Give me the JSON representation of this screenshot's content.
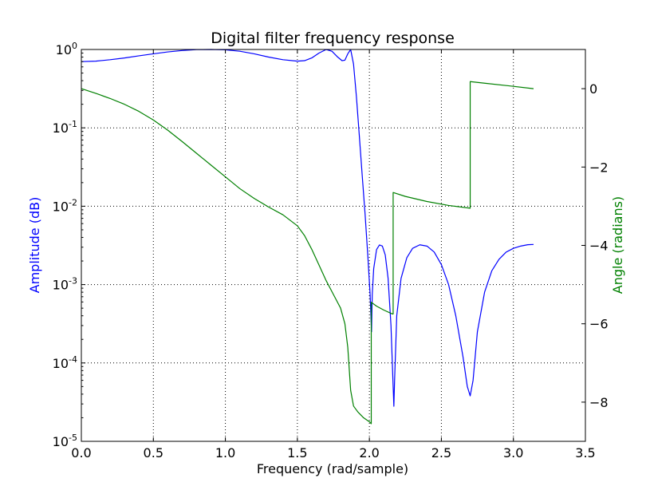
{
  "chart_data": {
    "type": "line",
    "title": "Digital filter frequency response",
    "xlabel": "Frequency (rad/sample)",
    "ylabel_left": "Amplitude (dB)",
    "ylabel_right": "Angle (radians)",
    "xlim": [
      0.0,
      3.5
    ],
    "ylim_left": [
      1e-05,
      1.0
    ],
    "yscale_left": "log",
    "ylim_right": [
      -9.0,
      1.0
    ],
    "grid": true,
    "colors": {
      "amplitude": "#0000ff",
      "angle": "#008000"
    },
    "x_ticks": [
      {
        "value": 0.0,
        "label": "0.0"
      },
      {
        "value": 0.5,
        "label": "0.5"
      },
      {
        "value": 1.0,
        "label": "1.0"
      },
      {
        "value": 1.5,
        "label": "1.5"
      },
      {
        "value": 2.0,
        "label": "2.0"
      },
      {
        "value": 2.5,
        "label": "2.5"
      },
      {
        "value": 3.0,
        "label": "3.0"
      },
      {
        "value": 3.5,
        "label": "3.5"
      }
    ],
    "y_ticks_left": [
      {
        "value": 1,
        "base": "10",
        "exp": "0"
      },
      {
        "value": 0.1,
        "base": "10",
        "exp": "-1"
      },
      {
        "value": 0.01,
        "base": "10",
        "exp": "-2"
      },
      {
        "value": 0.001,
        "base": "10",
        "exp": "-3"
      },
      {
        "value": 0.0001,
        "base": "10",
        "exp": "-4"
      },
      {
        "value": 1e-05,
        "base": "10",
        "exp": "-5"
      }
    ],
    "y_ticks_right": [
      {
        "value": 0,
        "label": "0"
      },
      {
        "value": -2,
        "label": "−2"
      },
      {
        "value": -4,
        "label": "−4"
      },
      {
        "value": -6,
        "label": "−6"
      },
      {
        "value": -8,
        "label": "−8"
      }
    ],
    "amplitude_series": [
      [
        0.0,
        0.7
      ],
      [
        0.1,
        0.71
      ],
      [
        0.2,
        0.74
      ],
      [
        0.3,
        0.78
      ],
      [
        0.4,
        0.83
      ],
      [
        0.5,
        0.88
      ],
      [
        0.6,
        0.93
      ],
      [
        0.7,
        0.97
      ],
      [
        0.8,
        0.995
      ],
      [
        0.9,
        1.0
      ],
      [
        1.0,
        0.99
      ],
      [
        1.1,
        0.95
      ],
      [
        1.2,
        0.88
      ],
      [
        1.3,
        0.8
      ],
      [
        1.4,
        0.74
      ],
      [
        1.5,
        0.71
      ],
      [
        1.55,
        0.72
      ],
      [
        1.6,
        0.78
      ],
      [
        1.65,
        0.9
      ],
      [
        1.7,
        1.0
      ],
      [
        1.74,
        0.95
      ],
      [
        1.78,
        0.8
      ],
      [
        1.81,
        0.72
      ],
      [
        1.83,
        0.73
      ],
      [
        1.85,
        0.88
      ],
      [
        1.87,
        1.0
      ],
      [
        1.89,
        0.65
      ],
      [
        1.91,
        0.25
      ],
      [
        1.93,
        0.08
      ],
      [
        1.95,
        0.025
      ],
      [
        1.97,
        0.008
      ],
      [
        1.99,
        0.0022
      ],
      [
        2.005,
        0.00075
      ],
      [
        2.015,
        0.00025
      ],
      [
        2.02,
        0.00075
      ],
      [
        2.03,
        0.0016
      ],
      [
        2.05,
        0.0028
      ],
      [
        2.07,
        0.0032
      ],
      [
        2.09,
        0.0031
      ],
      [
        2.11,
        0.0024
      ],
      [
        2.13,
        0.0012
      ],
      [
        2.15,
        0.0003
      ],
      [
        2.165,
        5e-05
      ],
      [
        2.17,
        2.8e-05
      ],
      [
        2.175,
        6e-05
      ],
      [
        2.19,
        0.0004
      ],
      [
        2.22,
        0.0012
      ],
      [
        2.26,
        0.0022
      ],
      [
        2.3,
        0.0029
      ],
      [
        2.35,
        0.00322
      ],
      [
        2.4,
        0.0031
      ],
      [
        2.45,
        0.0026
      ],
      [
        2.5,
        0.0018
      ],
      [
        2.55,
        0.001
      ],
      [
        2.6,
        0.0004
      ],
      [
        2.65,
        0.00012
      ],
      [
        2.68,
        5e-05
      ],
      [
        2.7,
        3.8e-05
      ],
      [
        2.72,
        6e-05
      ],
      [
        2.75,
        0.00025
      ],
      [
        2.8,
        0.0008
      ],
      [
        2.85,
        0.0015
      ],
      [
        2.9,
        0.0021
      ],
      [
        2.95,
        0.0026
      ],
      [
        3.0,
        0.0029
      ],
      [
        3.05,
        0.0031
      ],
      [
        3.1,
        0.00323
      ],
      [
        3.14,
        0.00325
      ]
    ],
    "angle_series": [
      [
        0.0,
        0.0
      ],
      [
        0.1,
        -0.12
      ],
      [
        0.2,
        -0.25
      ],
      [
        0.3,
        -0.4
      ],
      [
        0.4,
        -0.58
      ],
      [
        0.5,
        -0.8
      ],
      [
        0.6,
        -1.06
      ],
      [
        0.7,
        -1.35
      ],
      [
        0.8,
        -1.65
      ],
      [
        0.9,
        -1.95
      ],
      [
        1.0,
        -2.25
      ],
      [
        1.1,
        -2.55
      ],
      [
        1.2,
        -2.8
      ],
      [
        1.3,
        -3.02
      ],
      [
        1.4,
        -3.22
      ],
      [
        1.5,
        -3.5
      ],
      [
        1.55,
        -3.75
      ],
      [
        1.6,
        -4.1
      ],
      [
        1.65,
        -4.5
      ],
      [
        1.7,
        -4.9
      ],
      [
        1.75,
        -5.25
      ],
      [
        1.8,
        -5.6
      ],
      [
        1.83,
        -6.0
      ],
      [
        1.85,
        -6.6
      ],
      [
        1.87,
        -7.7
      ],
      [
        1.89,
        -8.1
      ],
      [
        1.92,
        -8.25
      ],
      [
        1.96,
        -8.4
      ],
      [
        2.0,
        -8.5
      ],
      [
        2.013,
        -8.55
      ],
      [
        2.013,
        -5.45
      ],
      [
        2.05,
        -5.55
      ],
      [
        2.1,
        -5.65
      ],
      [
        2.16,
        -5.75
      ],
      [
        2.165,
        -5.75
      ],
      [
        2.165,
        -2.65
      ],
      [
        2.25,
        -2.75
      ],
      [
        2.4,
        -2.88
      ],
      [
        2.55,
        -2.98
      ],
      [
        2.7,
        -3.05
      ],
      [
        2.7,
        0.18
      ],
      [
        2.8,
        0.14
      ],
      [
        2.95,
        0.08
      ],
      [
        3.14,
        0.0
      ]
    ]
  }
}
